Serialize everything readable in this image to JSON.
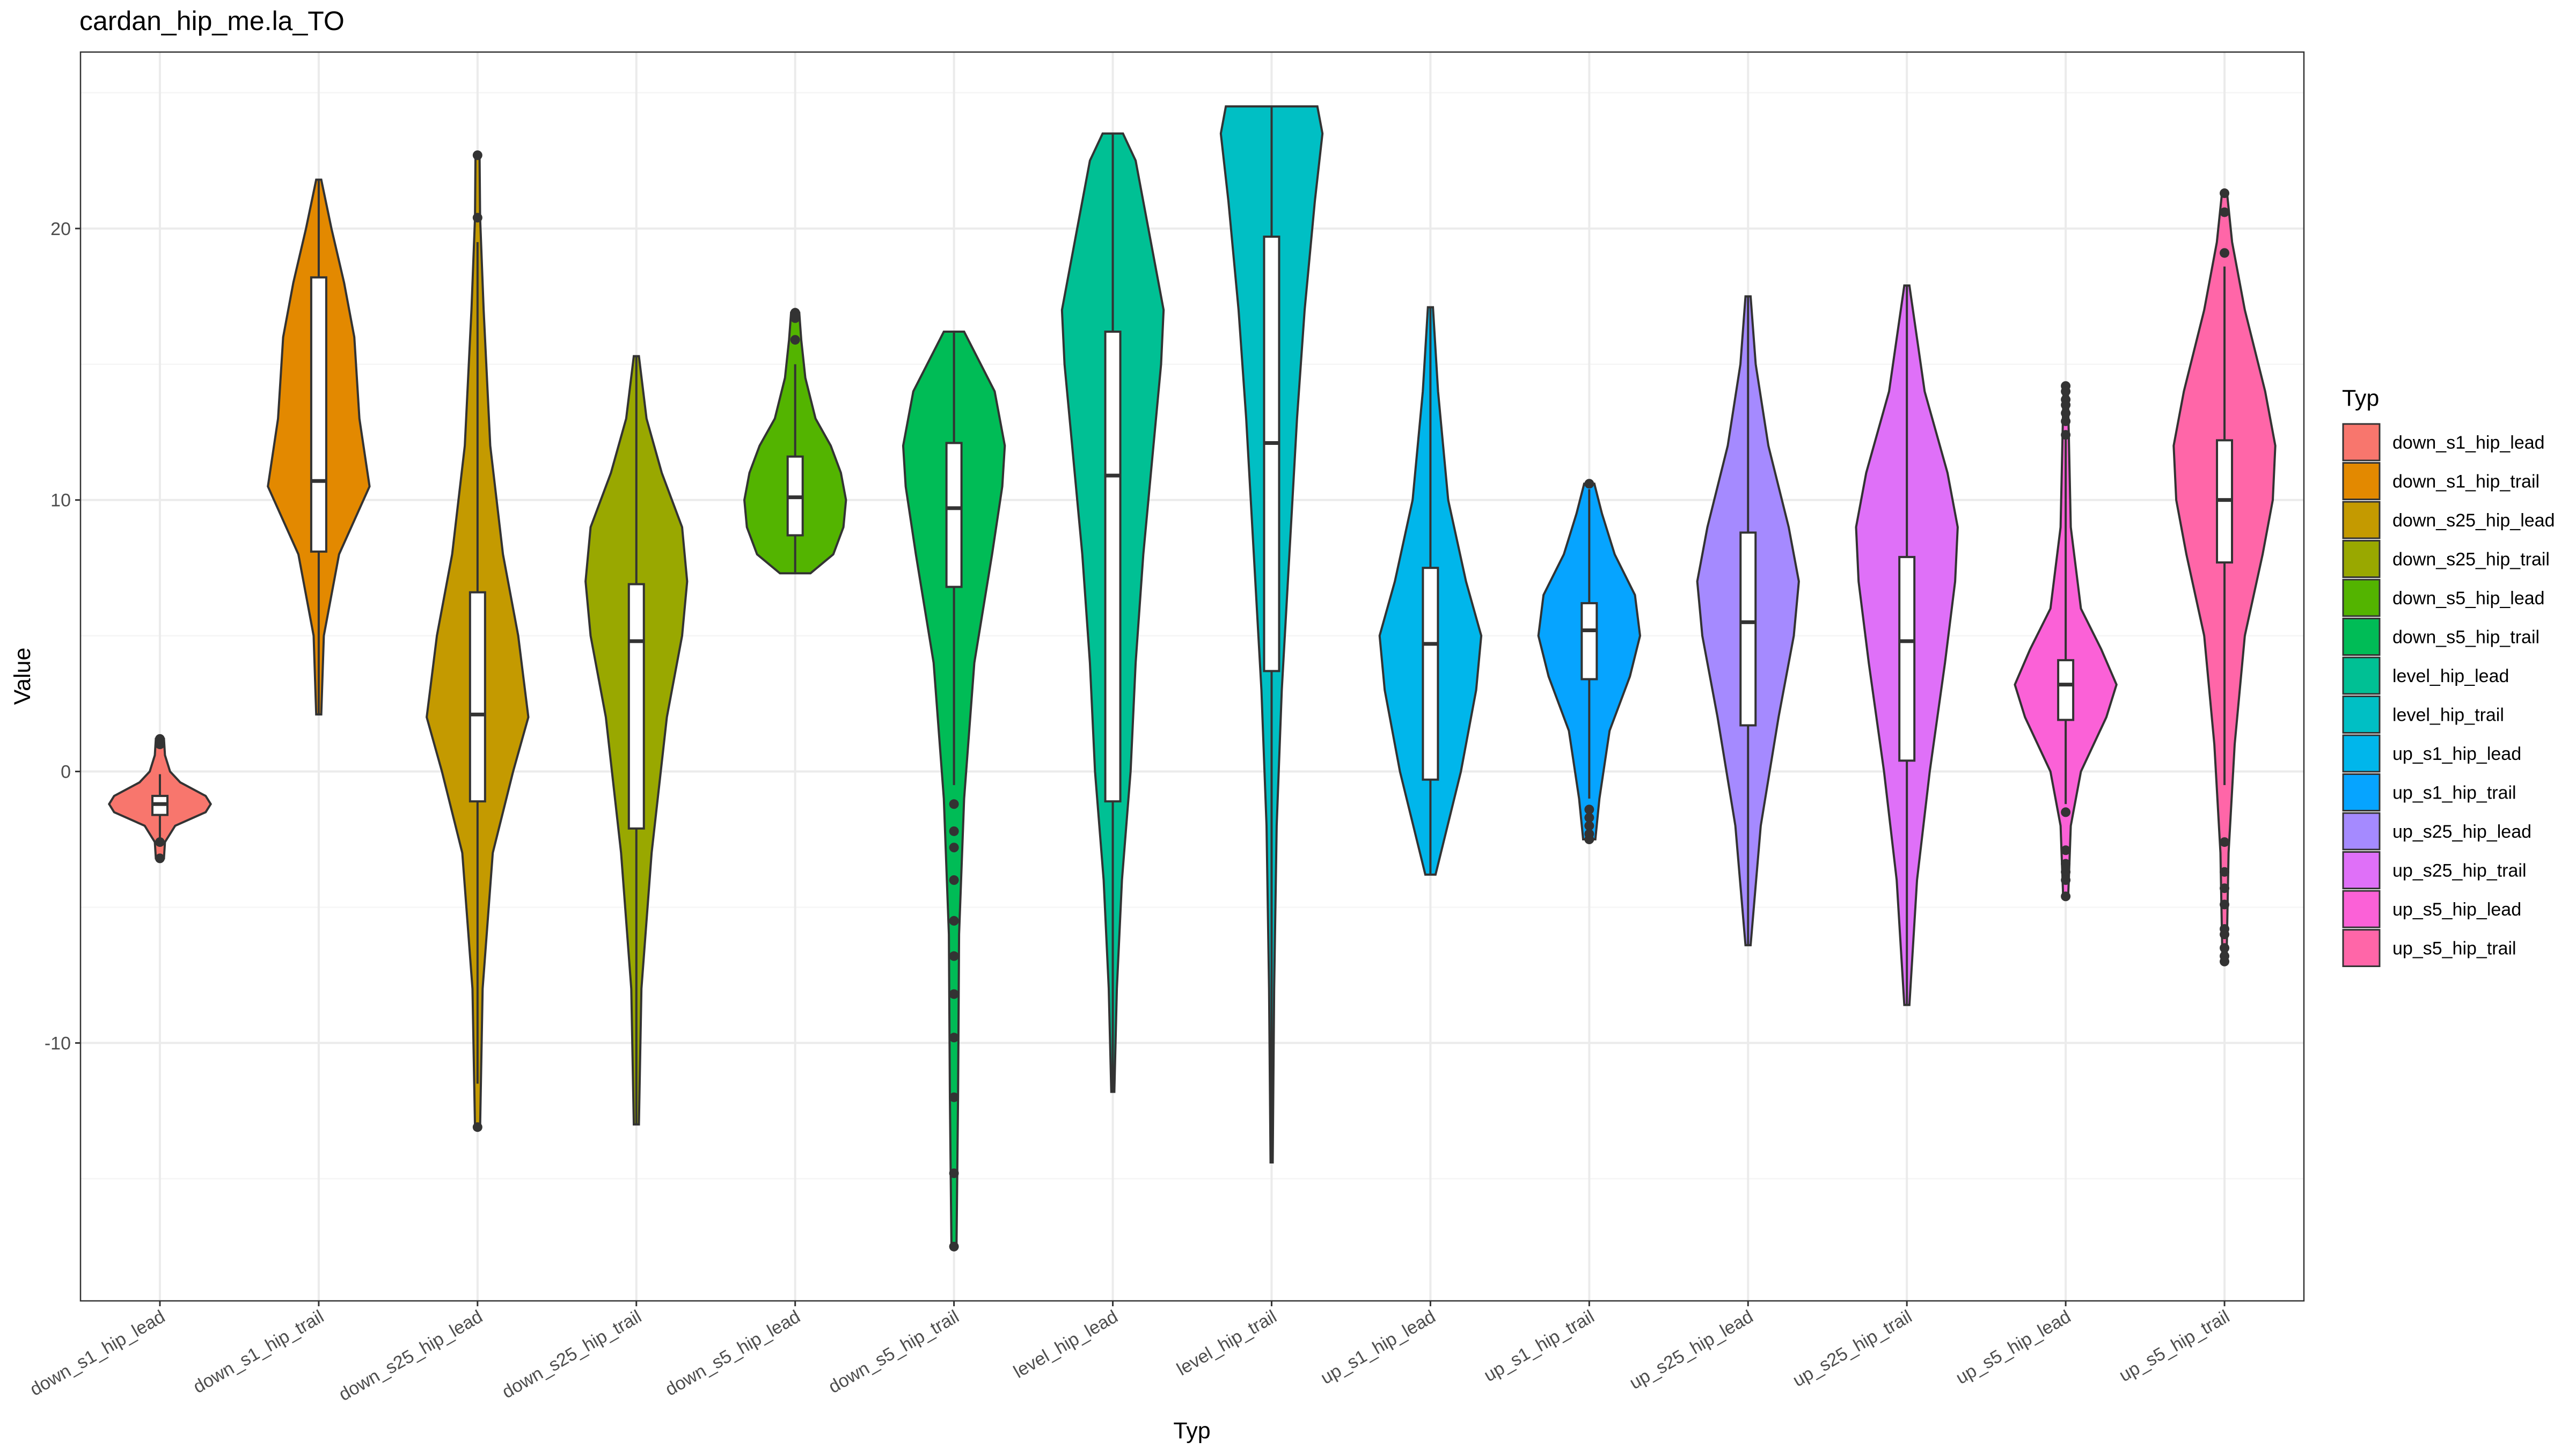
{
  "chart_data": {
    "type": "violin",
    "title": "cardan_hip_me.la_TO",
    "xlabel": "Typ",
    "ylabel": "Value",
    "ylim": [
      -19.5,
      26.5
    ],
    "yticks": [
      -10,
      0,
      10,
      20
    ],
    "grid": true,
    "legend": {
      "title": "Typ",
      "position": "right"
    },
    "categories": [
      "down_s1_hip_lead",
      "down_s1_hip_trail",
      "down_s25_hip_lead",
      "down_s25_hip_trail",
      "down_s5_hip_lead",
      "down_s5_hip_trail",
      "level_hip_lead",
      "level_hip_trail",
      "up_s1_hip_lead",
      "up_s1_hip_trail",
      "up_s25_hip_lead",
      "up_s25_hip_trail",
      "up_s5_hip_lead",
      "up_s5_hip_trail"
    ],
    "colors": [
      "#F8766D",
      "#E38900",
      "#C49A00",
      "#99A800",
      "#53B400",
      "#00BC56",
      "#00C094",
      "#00BFC4",
      "#00B6EB",
      "#06A4FF",
      "#A58AFF",
      "#DF70F8",
      "#FB61D7",
      "#FF66A8"
    ],
    "series": [
      {
        "name": "down_s1_hip_lead",
        "min": -2.6,
        "q1": -1.6,
        "median": -1.2,
        "q3": -0.9,
        "max": -0.1,
        "outliers": [
          1.2,
          1.0,
          -2.6,
          -3.2
        ],
        "density": [
          [
            -3.2,
            0.08
          ],
          [
            -2.6,
            0.1
          ],
          [
            -2.0,
            0.3
          ],
          [
            -1.5,
            0.9
          ],
          [
            -1.2,
            1.0
          ],
          [
            -0.9,
            0.9
          ],
          [
            -0.4,
            0.4
          ],
          [
            0,
            0.2
          ],
          [
            0.6,
            0.1
          ],
          [
            1.2,
            0.08
          ]
        ]
      },
      {
        "name": "down_s1_hip_trail",
        "min": 2.1,
        "q1": 8.1,
        "median": 10.7,
        "q3": 18.2,
        "max": 21.8,
        "outliers": [],
        "density": [
          [
            2.1,
            0.05
          ],
          [
            5,
            0.1
          ],
          [
            8,
            0.4
          ],
          [
            10.5,
            1.0
          ],
          [
            13,
            0.8
          ],
          [
            16,
            0.7
          ],
          [
            18,
            0.5
          ],
          [
            20,
            0.25
          ],
          [
            21.8,
            0.05
          ]
        ]
      },
      {
        "name": "down_s25_hip_lead",
        "min": -11.5,
        "q1": -1.1,
        "median": 2.1,
        "q3": 6.6,
        "max": 19.5,
        "outliers": [
          22.7,
          20.4,
          -13.1
        ],
        "density": [
          [
            -13.1,
            0.05
          ],
          [
            -8,
            0.1
          ],
          [
            -3,
            0.3
          ],
          [
            0,
            0.7
          ],
          [
            2,
            1.0
          ],
          [
            5,
            0.8
          ],
          [
            8,
            0.5
          ],
          [
            12,
            0.25
          ],
          [
            17,
            0.12
          ],
          [
            20.4,
            0.05
          ],
          [
            22.7,
            0.04
          ]
        ]
      },
      {
        "name": "down_s25_hip_trail",
        "min": -13,
        "q1": -2.1,
        "median": 4.8,
        "q3": 6.9,
        "max": 15.3,
        "outliers": [],
        "density": [
          [
            -13,
            0.05
          ],
          [
            -8,
            0.1
          ],
          [
            -3,
            0.3
          ],
          [
            2,
            0.6
          ],
          [
            5,
            0.9
          ],
          [
            7,
            1.0
          ],
          [
            9,
            0.9
          ],
          [
            11,
            0.5
          ],
          [
            13,
            0.2
          ],
          [
            15.3,
            0.05
          ]
        ]
      },
      {
        "name": "down_s5_hip_lead",
        "min": 7.3,
        "q1": 8.7,
        "median": 10.1,
        "q3": 11.6,
        "max": 15.0,
        "outliers": [
          16.9,
          16.7,
          15.9
        ],
        "density": [
          [
            7.3,
            0.3
          ],
          [
            8,
            0.75
          ],
          [
            9,
            0.95
          ],
          [
            10,
            1.0
          ],
          [
            11,
            0.9
          ],
          [
            12,
            0.7
          ],
          [
            13,
            0.4
          ],
          [
            14.5,
            0.2
          ],
          [
            15.9,
            0.12
          ],
          [
            16.9,
            0.08
          ]
        ]
      },
      {
        "name": "down_s5_hip_trail",
        "min": -0.5,
        "q1": 6.8,
        "median": 9.7,
        "q3": 12.1,
        "max": 16.2,
        "outliers": [
          -1.2,
          -2.2,
          -2.8,
          -4.0,
          -5.5,
          -6.8,
          -8.2,
          -9.8,
          -12.0,
          -14.8,
          -17.5
        ],
        "density": [
          [
            -17.5,
            0.05
          ],
          [
            -12,
            0.08
          ],
          [
            -6,
            0.1
          ],
          [
            -1,
            0.2
          ],
          [
            4,
            0.4
          ],
          [
            8,
            0.75
          ],
          [
            10.5,
            0.95
          ],
          [
            12,
            1.0
          ],
          [
            14,
            0.8
          ],
          [
            16.2,
            0.2
          ]
        ]
      },
      {
        "name": "level_hip_lead",
        "min": -11.8,
        "q1": -1.1,
        "median": 10.9,
        "q3": 16.2,
        "max": 23.5,
        "outliers": [],
        "density": [
          [
            -11.8,
            0.03
          ],
          [
            -8,
            0.08
          ],
          [
            -4,
            0.18
          ],
          [
            0,
            0.35
          ],
          [
            4,
            0.45
          ],
          [
            8,
            0.6
          ],
          [
            12,
            0.8
          ],
          [
            15,
            0.95
          ],
          [
            17,
            1.0
          ],
          [
            20,
            0.7
          ],
          [
            22.5,
            0.45
          ],
          [
            23.5,
            0.2
          ]
        ]
      },
      {
        "name": "level_hip_trail",
        "min": -14.4,
        "q1": 3.7,
        "median": 12.1,
        "q3": 19.7,
        "max": 24.5,
        "outliers": [],
        "density": [
          [
            -14.4,
            0.02
          ],
          [
            -8,
            0.05
          ],
          [
            -2,
            0.1
          ],
          [
            3,
            0.2
          ],
          [
            8,
            0.35
          ],
          [
            13,
            0.5
          ],
          [
            17,
            0.65
          ],
          [
            21,
            0.85
          ],
          [
            23.5,
            1.0
          ],
          [
            24.5,
            0.9
          ]
        ]
      },
      {
        "name": "up_s1_hip_lead",
        "min": -3.8,
        "q1": -0.3,
        "median": 4.7,
        "q3": 7.5,
        "max": 17.1,
        "outliers": [],
        "density": [
          [
            -3.8,
            0.1
          ],
          [
            0,
            0.6
          ],
          [
            3,
            0.9
          ],
          [
            5,
            1.0
          ],
          [
            7,
            0.7
          ],
          [
            10,
            0.35
          ],
          [
            14,
            0.15
          ],
          [
            17.1,
            0.05
          ]
        ]
      },
      {
        "name": "up_s1_hip_trail",
        "min": -1.0,
        "q1": 3.4,
        "median": 5.2,
        "q3": 6.2,
        "max": 10.4,
        "outliers": [
          10.6,
          -1.4,
          -1.7,
          -2.0,
          -2.3,
          -2.5
        ],
        "density": [
          [
            -2.5,
            0.12
          ],
          [
            -1,
            0.2
          ],
          [
            1.5,
            0.4
          ],
          [
            3.5,
            0.8
          ],
          [
            5,
            1.0
          ],
          [
            6.5,
            0.9
          ],
          [
            8,
            0.5
          ],
          [
            9.5,
            0.25
          ],
          [
            10.6,
            0.1
          ]
        ]
      },
      {
        "name": "up_s25_hip_lead",
        "min": -6.4,
        "q1": 1.7,
        "median": 5.5,
        "q3": 8.8,
        "max": 17.5,
        "outliers": [],
        "density": [
          [
            -6.4,
            0.05
          ],
          [
            -2,
            0.25
          ],
          [
            2,
            0.6
          ],
          [
            5,
            0.9
          ],
          [
            7,
            1.0
          ],
          [
            9,
            0.8
          ],
          [
            12,
            0.4
          ],
          [
            15,
            0.15
          ],
          [
            17.5,
            0.05
          ]
        ]
      },
      {
        "name": "up_s25_hip_trail",
        "min": -8.6,
        "q1": 0.4,
        "median": 4.8,
        "q3": 7.9,
        "max": 17.9,
        "outliers": [],
        "density": [
          [
            -8.6,
            0.05
          ],
          [
            -4,
            0.2
          ],
          [
            0,
            0.45
          ],
          [
            4,
            0.75
          ],
          [
            7,
            0.95
          ],
          [
            9,
            1.0
          ],
          [
            11,
            0.8
          ],
          [
            14,
            0.35
          ],
          [
            17.9,
            0.05
          ]
        ]
      },
      {
        "name": "up_s5_hip_lead",
        "min": -1.2,
        "q1": 1.9,
        "median": 3.2,
        "q3": 4.1,
        "max": 12.5,
        "outliers": [
          14.2,
          14.0,
          13.7,
          13.5,
          13.2,
          12.9,
          12.4,
          -1.5,
          -2.9,
          -3.4,
          -3.7,
          -4.0,
          -4.6
        ],
        "density": [
          [
            -4.6,
            0.05
          ],
          [
            -2,
            0.1
          ],
          [
            0,
            0.3
          ],
          [
            2,
            0.8
          ],
          [
            3.2,
            1.0
          ],
          [
            4.5,
            0.7
          ],
          [
            6,
            0.3
          ],
          [
            9,
            0.1
          ],
          [
            12.5,
            0.06
          ],
          [
            14.2,
            0.04
          ]
        ]
      },
      {
        "name": "up_s5_hip_trail",
        "min": -0.5,
        "q1": 7.7,
        "median": 10.0,
        "q3": 12.2,
        "max": 18.6,
        "outliers": [
          21.3,
          20.6,
          19.1,
          -2.6,
          -3.7,
          -4.3,
          -4.9,
          -5.8,
          -6.0,
          -6.5,
          -6.8,
          -7.0
        ],
        "density": [
          [
            -7.0,
            0.04
          ],
          [
            -3,
            0.08
          ],
          [
            1,
            0.2
          ],
          [
            5,
            0.4
          ],
          [
            8,
            0.75
          ],
          [
            10,
            0.95
          ],
          [
            12,
            1.0
          ],
          [
            14,
            0.8
          ],
          [
            17,
            0.4
          ],
          [
            19.5,
            0.15
          ],
          [
            21.3,
            0.05
          ]
        ]
      }
    ]
  }
}
